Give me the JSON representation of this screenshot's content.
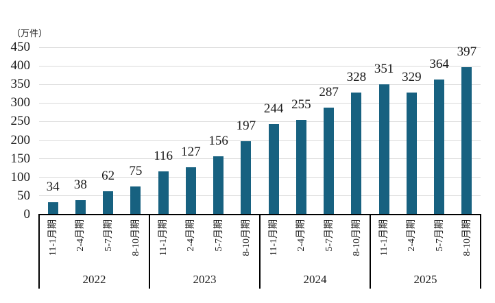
{
  "chart_data": {
    "type": "bar",
    "title": "",
    "ylabel": "（万件）",
    "xlabel": "",
    "ylim": [
      0,
      450
    ],
    "ytick_interval": 50,
    "yticks": [
      450,
      400,
      350,
      300,
      250,
      200,
      150,
      100,
      50,
      0
    ],
    "grid": true,
    "legend": "none",
    "data_labels": "outside-end",
    "quarter_labels": [
      "11-1月期",
      "2-4月期",
      "5-7月期",
      "8-10月期"
    ],
    "groups": [
      {
        "year": "2022",
        "values": [
          34,
          38,
          62,
          75
        ]
      },
      {
        "year": "2023",
        "values": [
          116,
          127,
          156,
          197
        ]
      },
      {
        "year": "2024",
        "values": [
          244,
          255,
          287,
          328
        ]
      },
      {
        "year": "2025",
        "values": [
          351,
          329,
          364,
          397
        ]
      }
    ],
    "colors": {
      "bar": "#176180",
      "gridline": "#d9d9d9",
      "axis": "#000000",
      "text": "#1a1a1a"
    }
  }
}
